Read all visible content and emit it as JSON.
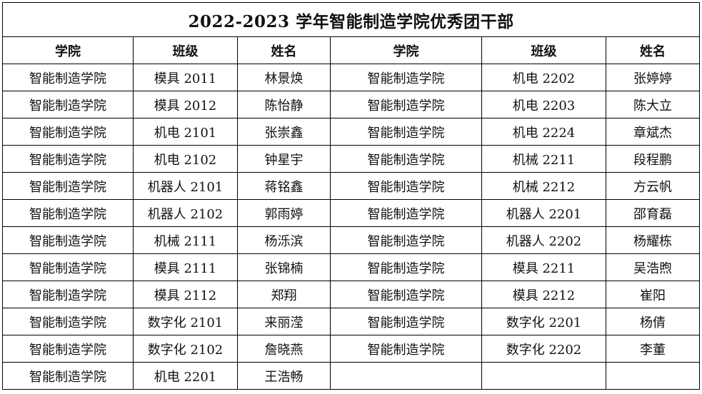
{
  "title": "2022-2023 学年智能制造学院优秀团干部",
  "headers": [
    "学院",
    "班级",
    "姓名",
    "学院",
    "班级",
    "姓名"
  ],
  "rows": [
    [
      "智能制造学院",
      "模具 2011",
      "林景焕",
      "智能制造学院",
      "机电 2202",
      "张婷婷"
    ],
    [
      "智能制造学院",
      "模具 2012",
      "陈怡静",
      "智能制造学院",
      "机电 2203",
      "陈大立"
    ],
    [
      "智能制造学院",
      "机电 2101",
      "张崇鑫",
      "智能制造学院",
      "机电 2224",
      "章斌杰"
    ],
    [
      "智能制造学院",
      "机电 2102",
      "钟星宇",
      "智能制造学院",
      "机械 2211",
      "段程鹏"
    ],
    [
      "智能制造学院",
      "机器人 2101",
      "蒋铭鑫",
      "智能制造学院",
      "机械 2212",
      "方云帆"
    ],
    [
      "智能制造学院",
      "机器人 2102",
      "郭雨婷",
      "智能制造学院",
      "机器人 2201",
      "邵育磊"
    ],
    [
      "智能制造学院",
      "机械 2111",
      "杨泺滨",
      "智能制造学院",
      "机器人 2202",
      "杨耀栋"
    ],
    [
      "智能制造学院",
      "模具 2111",
      "张锦楠",
      "智能制造学院",
      "模具 2211",
      "吴浩煦"
    ],
    [
      "智能制造学院",
      "模具 2112",
      "郑翔",
      "智能制造学院",
      "模具 2212",
      "崔阳"
    ],
    [
      "智能制造学院",
      "数字化 2101",
      "来丽滢",
      "智能制造学院",
      "数字化 2201",
      "杨倩"
    ],
    [
      "智能制造学院",
      "数字化 2102",
      "詹晓燕",
      "智能制造学院",
      "数字化 2202",
      "李董"
    ],
    [
      "智能制造学院",
      "机电 2201",
      "王浩畅",
      "",
      "",
      ""
    ]
  ]
}
